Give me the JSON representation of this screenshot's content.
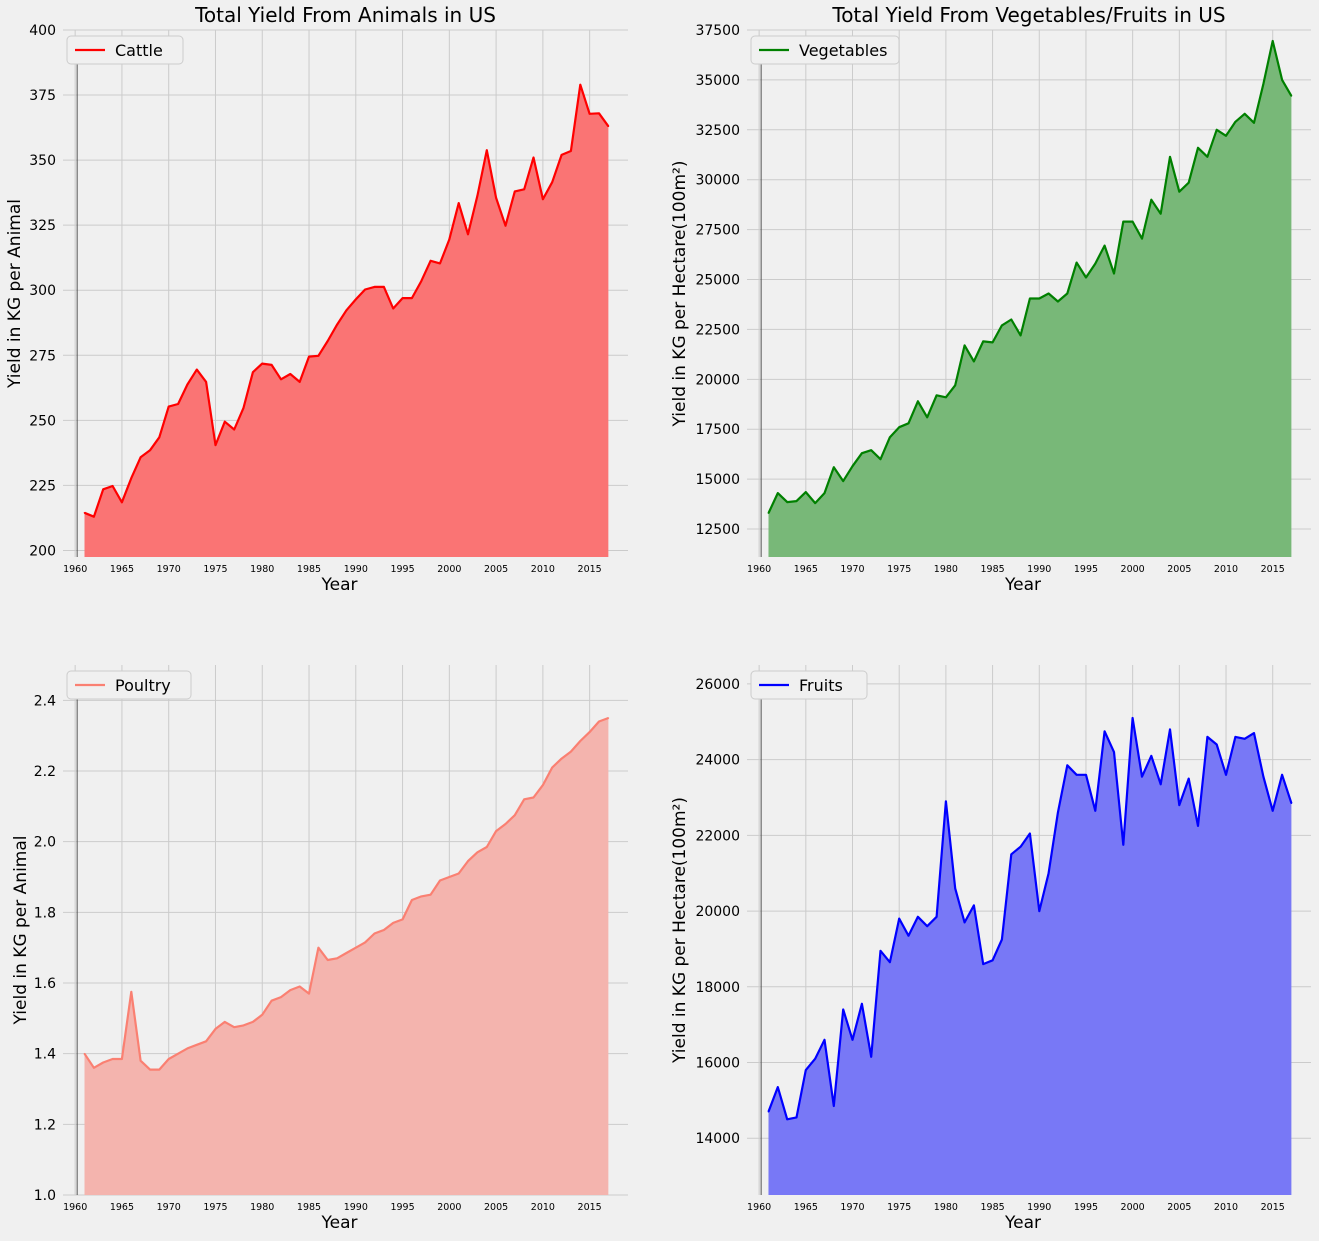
{
  "chart_data": [
    {
      "type": "area",
      "title": "Total Yield From Animals in US",
      "xlabel": "Year",
      "ylabel": "Yield in KG per Animal",
      "color": "#ff0000",
      "fill": "#fa7474",
      "legend_loc": "upper-left",
      "grid": true,
      "ylim": [
        197.5,
        400
      ],
      "yticks": [
        200,
        225,
        250,
        275,
        300,
        325,
        350,
        375,
        400
      ],
      "ytick_labels": [
        "200",
        "225",
        "250",
        "275",
        "300",
        "325",
        "350",
        "375",
        "400"
      ],
      "xticks": [
        1960,
        1965,
        1970,
        1975,
        1980,
        1985,
        1990,
        1995,
        2000,
        2005,
        2010,
        2015
      ],
      "x": [
        1961,
        1962,
        1963,
        1964,
        1965,
        1966,
        1967,
        1968,
        1969,
        1970,
        1971,
        1972,
        1973,
        1974,
        1975,
        1976,
        1977,
        1978,
        1979,
        1980,
        1981,
        1982,
        1983,
        1984,
        1985,
        1986,
        1987,
        1988,
        1989,
        1990,
        1991,
        1992,
        1993,
        1994,
        1995,
        1996,
        1997,
        1998,
        1999,
        2000,
        2001,
        2002,
        2003,
        2004,
        2005,
        2006,
        2007,
        2008,
        2009,
        2010,
        2011,
        2012,
        2013,
        2014,
        2015,
        2016,
        2017
      ],
      "series": [
        {
          "name": "Cattle",
          "values": [
            214.5,
            213,
            223.5,
            224.8,
            218.5,
            227.8,
            235.8,
            238.5,
            243.5,
            255.3,
            256.3,
            263.8,
            269.5,
            264.8,
            240.5,
            249.5,
            246.5,
            254.8,
            268.5,
            271.8,
            271.3,
            265.8,
            267.8,
            264.8,
            274.5,
            274.8,
            280.5,
            286.8,
            292.3,
            296.5,
            300.3,
            301.3,
            301.3,
            293,
            297,
            297,
            303.5,
            311.3,
            310.3,
            319.5,
            333.5,
            321.5,
            336.3,
            353.8,
            335.5,
            324.8,
            338,
            338.8,
            351,
            335,
            341.5,
            352,
            353.5,
            379,
            367.8,
            368,
            363
          ]
        }
      ]
    },
    {
      "type": "area",
      "title": "Total Yield From Vegetables/Fruits in US",
      "xlabel": "Year",
      "ylabel": "Yield in KG per Hectare(100m²)",
      "color": "#008000",
      "fill": "#78b878",
      "legend_loc": "upper-left",
      "grid": true,
      "ylim": [
        11100,
        37500
      ],
      "yticks": [
        12500,
        15000,
        17500,
        20000,
        22500,
        25000,
        27500,
        30000,
        32500,
        35000,
        37500
      ],
      "ytick_labels": [
        "12500",
        "15000",
        "17500",
        "20000",
        "22500",
        "25000",
        "27500",
        "30000",
        "32500",
        "35000",
        "37500"
      ],
      "xticks": [
        1960,
        1965,
        1970,
        1975,
        1980,
        1985,
        1990,
        1995,
        2000,
        2005,
        2010,
        2015
      ],
      "x": [
        1961,
        1962,
        1963,
        1964,
        1965,
        1966,
        1967,
        1968,
        1969,
        1970,
        1971,
        1972,
        1973,
        1974,
        1975,
        1976,
        1977,
        1978,
        1979,
        1980,
        1981,
        1982,
        1983,
        1984,
        1985,
        1986,
        1987,
        1988,
        1989,
        1990,
        1991,
        1992,
        1993,
        1994,
        1995,
        1996,
        1997,
        1998,
        1999,
        2000,
        2001,
        2002,
        2003,
        2004,
        2005,
        2006,
        2007,
        2008,
        2009,
        2010,
        2011,
        2012,
        2013,
        2014,
        2015,
        2016,
        2017
      ],
      "series": [
        {
          "name": "Vegetables",
          "values": [
            13300,
            14300,
            13850,
            13900,
            14350,
            13800,
            14300,
            15600,
            14900,
            15650,
            16300,
            16450,
            16000,
            17100,
            17600,
            17800,
            18900,
            18100,
            19200,
            19100,
            19700,
            21700,
            20900,
            21900,
            21850,
            22700,
            23000,
            22200,
            24050,
            24050,
            24300,
            23900,
            24300,
            25850,
            25100,
            25800,
            26700,
            25300,
            27900,
            27900,
            27050,
            29000,
            28300,
            31150,
            29400,
            29850,
            31600,
            31150,
            32500,
            32200,
            32900,
            33300,
            32850,
            34800,
            36950,
            35000,
            34200
          ]
        }
      ]
    },
    {
      "type": "area",
      "title": "",
      "xlabel": "Year",
      "ylabel": "Yield in KG per Animal",
      "color": "#fa8072",
      "fill": "#f4b4ae",
      "legend_loc": "upper-left",
      "grid": true,
      "ylim": [
        1.0,
        2.5
      ],
      "yticks": [
        1.0,
        1.2,
        1.4,
        1.6,
        1.8,
        2.0,
        2.2,
        2.4
      ],
      "ytick_labels": [
        "1.0",
        "1.2",
        "1.4",
        "1.6",
        "1.8",
        "2.0",
        "2.2",
        "2.4"
      ],
      "xticks": [
        1960,
        1965,
        1970,
        1975,
        1980,
        1985,
        1990,
        1995,
        2000,
        2005,
        2010,
        2015
      ],
      "x": [
        1961,
        1962,
        1963,
        1964,
        1965,
        1966,
        1967,
        1968,
        1969,
        1970,
        1971,
        1972,
        1973,
        1974,
        1975,
        1976,
        1977,
        1978,
        1979,
        1980,
        1981,
        1982,
        1983,
        1984,
        1985,
        1986,
        1987,
        1988,
        1989,
        1990,
        1991,
        1992,
        1993,
        1994,
        1995,
        1996,
        1997,
        1998,
        1999,
        2000,
        2001,
        2002,
        2003,
        2004,
        2005,
        2006,
        2007,
        2008,
        2009,
        2010,
        2011,
        2012,
        2013,
        2014,
        2015,
        2016,
        2017
      ],
      "series": [
        {
          "name": "Poultry",
          "values": [
            1.4,
            1.36,
            1.375,
            1.385,
            1.385,
            1.575,
            1.38,
            1.355,
            1.355,
            1.385,
            1.4,
            1.415,
            1.425,
            1.435,
            1.47,
            1.49,
            1.475,
            1.48,
            1.49,
            1.51,
            1.55,
            1.56,
            1.58,
            1.59,
            1.57,
            1.7,
            1.665,
            1.67,
            1.685,
            1.7,
            1.715,
            1.74,
            1.75,
            1.77,
            1.78,
            1.835,
            1.845,
            1.85,
            1.89,
            1.9,
            1.91,
            1.945,
            1.97,
            1.985,
            2.03,
            2.05,
            2.075,
            2.12,
            2.125,
            2.16,
            2.21,
            2.235,
            2.255,
            2.285,
            2.31,
            2.34,
            2.35
          ]
        }
      ]
    },
    {
      "type": "area",
      "title": "",
      "xlabel": "Year",
      "ylabel": "Yield in KG per Hectare(100m²)",
      "color": "#0000ff",
      "fill": "#7878f6",
      "legend_loc": "upper-left",
      "grid": true,
      "ylim": [
        12500,
        26500
      ],
      "yticks": [
        14000,
        16000,
        18000,
        20000,
        22000,
        24000,
        26000
      ],
      "ytick_labels": [
        "14000",
        "16000",
        "18000",
        "20000",
        "22000",
        "24000",
        "26000"
      ],
      "xticks": [
        1960,
        1965,
        1970,
        1975,
        1980,
        1985,
        1990,
        1995,
        2000,
        2005,
        2010,
        2015
      ],
      "x": [
        1961,
        1962,
        1963,
        1964,
        1965,
        1966,
        1967,
        1968,
        1969,
        1970,
        1971,
        1972,
        1973,
        1974,
        1975,
        1976,
        1977,
        1978,
        1979,
        1980,
        1981,
        1982,
        1983,
        1984,
        1985,
        1986,
        1987,
        1988,
        1989,
        1990,
        1991,
        1992,
        1993,
        1994,
        1995,
        1996,
        1997,
        1998,
        1999,
        2000,
        2001,
        2002,
        2003,
        2004,
        2005,
        2006,
        2007,
        2008,
        2009,
        2010,
        2011,
        2012,
        2013,
        2014,
        2015,
        2016,
        2017
      ],
      "series": [
        {
          "name": "Fruits",
          "values": [
            14700,
            15350,
            14500,
            14550,
            15800,
            16100,
            16600,
            14850,
            17400,
            16600,
            17550,
            16150,
            18950,
            18650,
            19800,
            19350,
            19850,
            19600,
            19850,
            22900,
            20600,
            19700,
            20150,
            18600,
            18700,
            19250,
            21500,
            21700,
            22050,
            20000,
            21000,
            22600,
            23850,
            23600,
            23600,
            22650,
            24750,
            24200,
            21750,
            25100,
            23550,
            24100,
            23350,
            24800,
            22800,
            23500,
            22250,
            24600,
            24400,
            23600,
            24600,
            24550,
            24700,
            23550,
            22650,
            23600,
            22850
          ]
        }
      ]
    }
  ]
}
